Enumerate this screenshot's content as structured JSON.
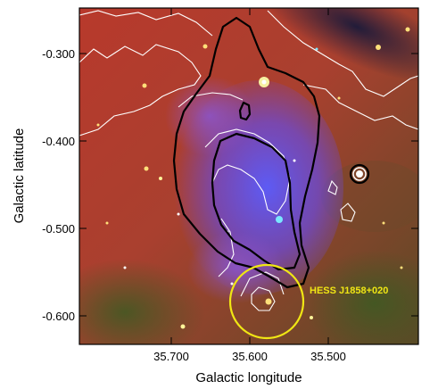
{
  "figure": {
    "xlabel": "Galactic longitude",
    "ylabel": "Galactic latitude",
    "x_ticks": [
      "35.700",
      "35.600",
      "35.500"
    ],
    "y_ticks": [
      "-0.300",
      "-0.400",
      "-0.500",
      "-0.600"
    ],
    "source_label": "HESS J1858+020",
    "colors": {
      "source_circle": "#f0e614",
      "source_label": "#f0e614",
      "black_contours": "#000000",
      "white_contours": "#ffffff"
    }
  }
}
